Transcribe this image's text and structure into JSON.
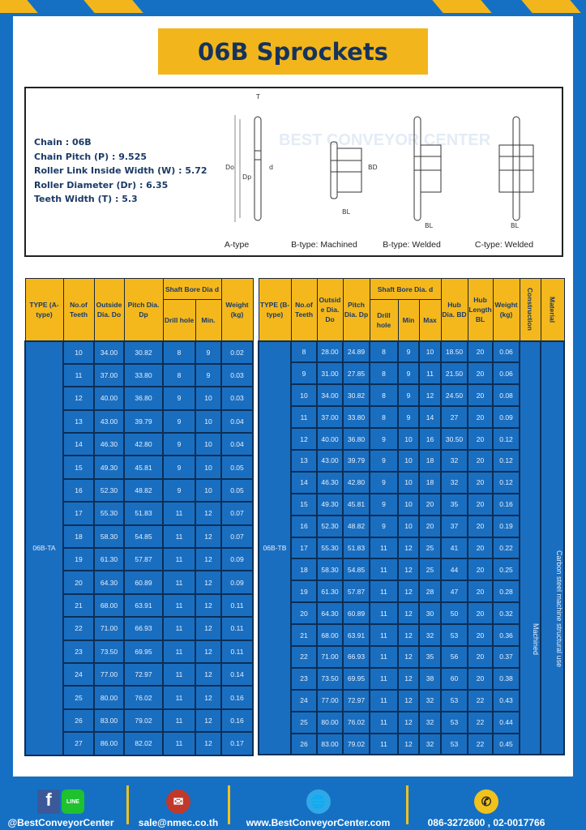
{
  "title": "06B Sprockets",
  "specs": {
    "chain": "Chain : 06B",
    "pitch": "Chain Pitch (P) : 9.525",
    "link_width": "Roller Link Inside Width (W) : 5.72",
    "roller_dia": "Roller Diameter (Dr) : 6.35",
    "teeth_width": "Teeth Width (T) : 5.3"
  },
  "diagrams": [
    "A-type",
    "B-type: Machined",
    "B-type: Welded",
    "C-type: Welded"
  ],
  "diagram_marks": {
    "T": "T",
    "Do": "Do",
    "Dp": "Dp",
    "d": "d",
    "BD": "BD",
    "BL": "BL"
  },
  "watermark": "BEST CONVEYOR CENTER",
  "table_a": {
    "headers": {
      "type": "TYPE (A-type)",
      "teeth": "No.of Teeth",
      "outside": "Outside Dia. Do",
      "pitch": "Pitch Dia. Dp",
      "bore": "Shaft Bore Dia d",
      "drill": "Drill hole",
      "min": "Min.",
      "weight": "Weight (kg)"
    },
    "type_value": "06B-TA",
    "rows": [
      [
        "10",
        "34.00",
        "30.82",
        "8",
        "9",
        "0.02"
      ],
      [
        "11",
        "37.00",
        "33.80",
        "8",
        "9",
        "0.03"
      ],
      [
        "12",
        "40.00",
        "36.80",
        "9",
        "10",
        "0.03"
      ],
      [
        "13",
        "43.00",
        "39.79",
        "9",
        "10",
        "0.04"
      ],
      [
        "14",
        "46.30",
        "42.80",
        "9",
        "10",
        "0.04"
      ],
      [
        "15",
        "49.30",
        "45.81",
        "9",
        "10",
        "0.05"
      ],
      [
        "16",
        "52.30",
        "48.82",
        "9",
        "10",
        "0.05"
      ],
      [
        "17",
        "55.30",
        "51.83",
        "11",
        "12",
        "0.07"
      ],
      [
        "18",
        "58.30",
        "54.85",
        "11",
        "12",
        "0.07"
      ],
      [
        "19",
        "61.30",
        "57.87",
        "11",
        "12",
        "0.09"
      ],
      [
        "20",
        "64.30",
        "60.89",
        "11",
        "12",
        "0.09"
      ],
      [
        "21",
        "68.00",
        "63.91",
        "11",
        "12",
        "0.11"
      ],
      [
        "22",
        "71.00",
        "66.93",
        "11",
        "12",
        "0.11"
      ],
      [
        "23",
        "73.50",
        "69.95",
        "11",
        "12",
        "0.11"
      ],
      [
        "24",
        "77.00",
        "72.97",
        "11",
        "12",
        "0.14"
      ],
      [
        "25",
        "80.00",
        "76.02",
        "11",
        "12",
        "0.16"
      ],
      [
        "26",
        "83.00",
        "79.02",
        "11",
        "12",
        "0.16"
      ],
      [
        "27",
        "86.00",
        "82.02",
        "11",
        "12",
        "0.17"
      ]
    ]
  },
  "table_b": {
    "headers": {
      "type": "TYPE (B-type)",
      "teeth": "No.of Teeth",
      "outside": "Outside Dia. Do",
      "pitch": "Pitch Dia. Dp",
      "bore": "Shaft Bore Dia. d",
      "drill": "Drill hole",
      "min": "Min",
      "max": "Max",
      "hub_dia": "Hub Dia. BD",
      "hub_len": "Hub Length BL",
      "weight": "Weight (kg)",
      "construction": "Construction",
      "material": "Material"
    },
    "type_value": "06B-TB",
    "construction_value": "Machined",
    "material_value": "Carbon steel machine structural use",
    "rows": [
      [
        "8",
        "28.00",
        "24.89",
        "8",
        "9",
        "10",
        "18.50",
        "20",
        "0.06"
      ],
      [
        "9",
        "31.00",
        "27.85",
        "8",
        "9",
        "11",
        "21.50",
        "20",
        "0.06"
      ],
      [
        "10",
        "34.00",
        "30.82",
        "8",
        "9",
        "12",
        "24.50",
        "20",
        "0.08"
      ],
      [
        "11",
        "37.00",
        "33.80",
        "8",
        "9",
        "14",
        "27",
        "20",
        "0.09"
      ],
      [
        "12",
        "40.00",
        "36.80",
        "9",
        "10",
        "16",
        "30.50",
        "20",
        "0.12"
      ],
      [
        "13",
        "43.00",
        "39.79",
        "9",
        "10",
        "18",
        "32",
        "20",
        "0.12"
      ],
      [
        "14",
        "46.30",
        "42.80",
        "9",
        "10",
        "18",
        "32",
        "20",
        "0.12"
      ],
      [
        "15",
        "49.30",
        "45.81",
        "9",
        "10",
        "20",
        "35",
        "20",
        "0.16"
      ],
      [
        "16",
        "52.30",
        "48.82",
        "9",
        "10",
        "20",
        "37",
        "20",
        "0.19"
      ],
      [
        "17",
        "55.30",
        "51.83",
        "11",
        "12",
        "25",
        "41",
        "20",
        "0.22"
      ],
      [
        "18",
        "58.30",
        "54.85",
        "11",
        "12",
        "25",
        "44",
        "20",
        "0.25"
      ],
      [
        "19",
        "61.30",
        "57.87",
        "11",
        "12",
        "28",
        "47",
        "20",
        "0.28"
      ],
      [
        "20",
        "64.30",
        "60.89",
        "11",
        "12",
        "30",
        "50",
        "20",
        "0.32"
      ],
      [
        "21",
        "68.00",
        "63.91",
        "11",
        "12",
        "32",
        "53",
        "20",
        "0.36"
      ],
      [
        "22",
        "71.00",
        "66.93",
        "11",
        "12",
        "35",
        "56",
        "20",
        "0.37"
      ],
      [
        "23",
        "73.50",
        "69.95",
        "11",
        "12",
        "38",
        "60",
        "20",
        "0.38"
      ],
      [
        "24",
        "77.00",
        "72.97",
        "11",
        "12",
        "32",
        "53",
        "22",
        "0.43"
      ],
      [
        "25",
        "80.00",
        "76.02",
        "11",
        "12",
        "32",
        "53",
        "22",
        "0.44"
      ],
      [
        "26",
        "83.00",
        "79.02",
        "11",
        "12",
        "32",
        "53",
        "22",
        "0.45"
      ]
    ]
  },
  "footer": {
    "social": "@BestConveyorCenter",
    "line_label": "LINE",
    "email": "sale@nmec.co.th",
    "website": "www.BestConveyorCenter.com",
    "phone": "086-3272600 , 02-0017766"
  },
  "colors": {
    "brand_blue": "#1570c4",
    "accent_yellow": "#f2b61c",
    "title_text": "#16335c"
  }
}
